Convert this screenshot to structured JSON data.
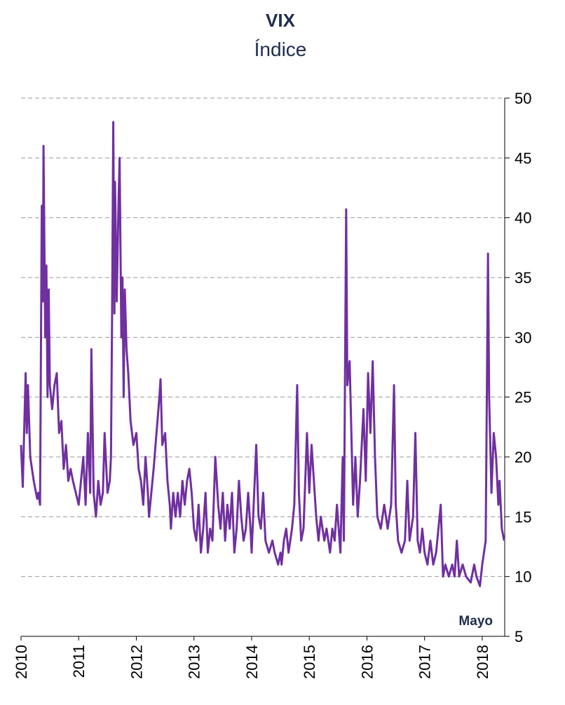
{
  "chart_data": {
    "type": "line",
    "title": "VIX",
    "subtitle": "Índice",
    "annotation": "Mayo",
    "x": [
      2010.0,
      2010.03,
      2010.08,
      2010.1,
      2010.12,
      2010.16,
      2010.22,
      2010.28,
      2010.3,
      2010.33,
      2010.36,
      2010.38,
      2010.39,
      2010.42,
      2010.44,
      2010.46,
      2010.48,
      2010.5,
      2010.54,
      2010.58,
      2010.62,
      2010.66,
      2010.7,
      2010.74,
      2010.78,
      2010.82,
      2010.86,
      2010.9,
      2010.95,
      2011.0,
      2011.04,
      2011.08,
      2011.12,
      2011.16,
      2011.2,
      2011.22,
      2011.26,
      2011.3,
      2011.34,
      2011.38,
      2011.42,
      2011.45,
      2011.5,
      2011.54,
      2011.56,
      2011.58,
      2011.6,
      2011.62,
      2011.63,
      2011.66,
      2011.69,
      2011.71,
      2011.74,
      2011.76,
      2011.78,
      2011.8,
      2011.83,
      2011.86,
      2011.9,
      2011.95,
      2012.0,
      2012.04,
      2012.08,
      2012.12,
      2012.16,
      2012.2,
      2012.22,
      2012.26,
      2012.3,
      2012.4,
      2012.42,
      2012.45,
      2012.5,
      2012.54,
      2012.58,
      2012.6,
      2012.64,
      2012.68,
      2012.72,
      2012.76,
      2012.8,
      2012.84,
      2012.88,
      2012.92,
      2012.96,
      2013.0,
      2013.04,
      2013.08,
      2013.12,
      2013.16,
      2013.2,
      2013.24,
      2013.28,
      2013.32,
      2013.37,
      2013.42,
      2013.46,
      2013.5,
      2013.54,
      2013.58,
      2013.62,
      2013.66,
      2013.7,
      2013.74,
      2013.78,
      2013.82,
      2013.86,
      2013.9,
      2013.94,
      2013.98,
      2014.0,
      2014.08,
      2014.12,
      2014.16,
      2014.2,
      2014.24,
      2014.3,
      2014.36,
      2014.4,
      2014.46,
      2014.5,
      2014.52,
      2014.56,
      2014.6,
      2014.64,
      2014.7,
      2014.74,
      2014.79,
      2014.82,
      2014.86,
      2014.9,
      2014.96,
      2015.0,
      2015.04,
      2015.08,
      2015.12,
      2015.16,
      2015.2,
      2015.26,
      2015.3,
      2015.36,
      2015.4,
      2015.44,
      2015.48,
      2015.54,
      2015.58,
      2015.6,
      2015.64,
      2015.66,
      2015.7,
      2015.72,
      2015.76,
      2015.8,
      2015.84,
      2015.88,
      2015.94,
      2015.98,
      2016.02,
      2016.06,
      2016.1,
      2016.14,
      2016.18,
      2016.24,
      2016.3,
      2016.36,
      2016.42,
      2016.47,
      2016.5,
      2016.54,
      2016.6,
      2016.66,
      2016.7,
      2016.74,
      2016.8,
      2016.84,
      2016.88,
      2016.92,
      2016.96,
      2017.0,
      2017.05,
      2017.1,
      2017.15,
      2017.2,
      2017.28,
      2017.32,
      2017.36,
      2017.42,
      2017.48,
      2017.52,
      2017.56,
      2017.6,
      2017.66,
      2017.72,
      2017.8,
      2017.86,
      2017.9,
      2017.96,
      2018.0,
      2018.06,
      2018.1,
      2018.12,
      2018.16,
      2018.2,
      2018.24,
      2018.28,
      2018.3,
      2018.34,
      2018.38
    ],
    "series": [
      {
        "name": "VIX",
        "color": "#7030a0",
        "values": [
          21,
          17.5,
          27,
          22,
          26,
          20,
          18,
          16.5,
          17,
          16,
          41,
          33,
          46,
          30,
          36,
          25,
          34,
          26,
          24,
          26,
          27,
          22,
          23,
          19,
          21,
          18,
          19,
          18,
          17,
          16,
          18,
          20,
          16,
          22,
          17,
          29,
          17,
          15,
          18,
          16,
          17,
          22,
          17,
          18,
          20,
          32,
          48,
          32,
          43,
          33,
          41,
          45,
          30,
          35,
          25,
          34,
          29,
          27,
          23,
          21,
          22,
          19,
          18,
          16,
          20,
          17,
          15,
          17,
          19,
          25,
          26.5,
          21,
          22,
          18,
          16,
          14,
          17,
          15,
          17,
          15,
          18,
          16,
          18,
          19,
          17,
          14,
          13,
          16,
          12,
          14,
          17,
          12,
          14,
          13,
          20,
          16,
          14,
          17,
          13,
          16,
          14,
          17,
          12,
          14,
          18,
          15,
          13,
          14,
          17,
          14,
          12,
          21,
          15,
          14,
          17,
          13,
          12,
          13,
          12,
          11,
          12,
          11,
          13,
          14,
          12,
          14,
          16,
          26,
          17,
          13,
          14,
          22,
          17,
          21,
          18,
          15,
          13,
          15,
          13,
          14,
          12,
          14,
          13,
          16,
          12,
          20,
          13,
          40.7,
          26,
          28,
          24,
          16,
          20,
          15,
          18,
          24,
          18,
          27,
          22,
          28,
          20,
          15,
          14,
          16,
          14,
          16,
          26,
          16,
          13,
          12,
          13,
          18,
          13,
          15,
          22,
          13,
          12,
          14,
          12,
          11,
          13,
          11,
          12,
          16,
          10,
          11,
          10,
          11,
          10,
          13,
          10,
          11,
          10,
          9.5,
          11,
          10,
          9.2,
          11,
          13,
          37,
          25,
          17,
          22,
          20,
          16,
          18,
          14,
          13
        ]
      }
    ],
    "xlim": [
      2010,
      2018.39
    ],
    "xticks": [
      2010,
      2011,
      2012,
      2013,
      2014,
      2015,
      2016,
      2017,
      2018
    ],
    "ylim": [
      5,
      50
    ],
    "yticks": [
      5,
      10,
      15,
      20,
      25,
      30,
      35,
      40,
      45,
      50
    ],
    "grid": true
  }
}
